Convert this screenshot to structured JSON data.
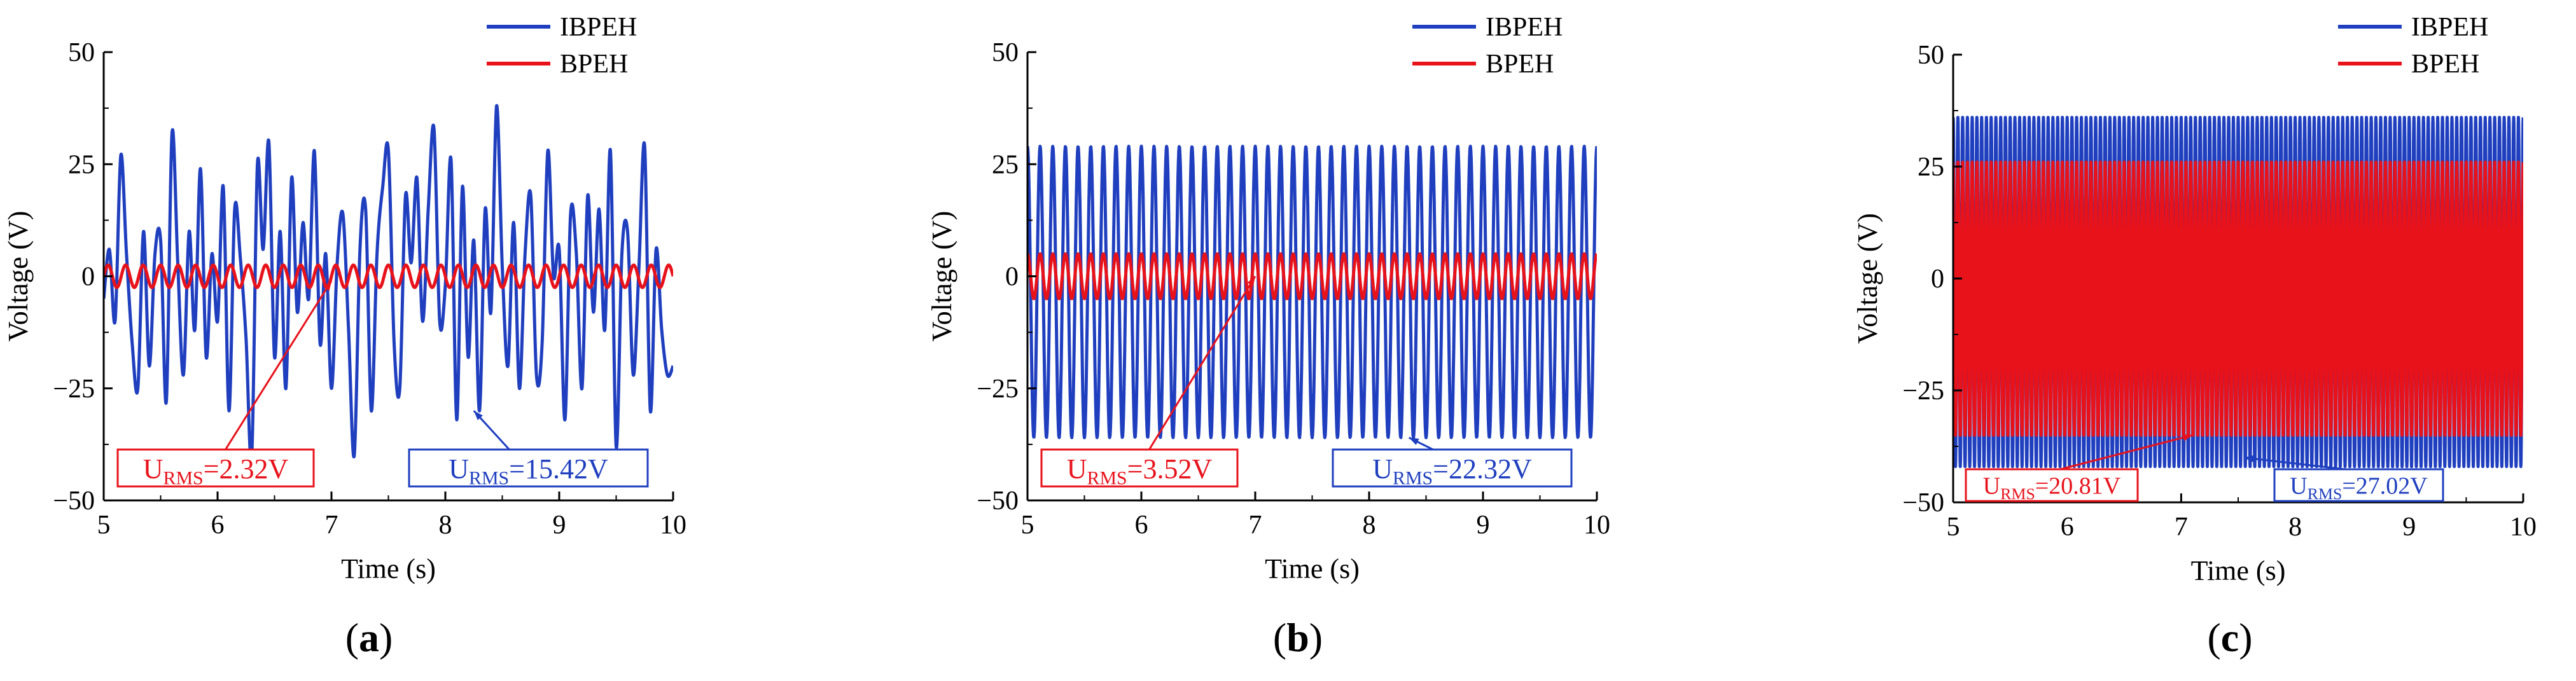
{
  "colors": {
    "ibpeh": "#1f3fbf",
    "bpeh": "#e8121b",
    "axis": "#000000"
  },
  "chart_data": [
    {
      "panel": "(a)",
      "panel_letter": "a",
      "type": "line",
      "title": "",
      "xlabel": "Time (s)",
      "ylabel": "Voltage (V)",
      "xlim": [
        5,
        10
      ],
      "ylim": [
        -50,
        50
      ],
      "xticks": [
        5,
        6,
        7,
        8,
        9,
        10
      ],
      "yticks": [
        50,
        25,
        0,
        -25,
        -50
      ],
      "ytick_labels": [
        "50",
        "25",
        "0",
        "−25",
        "−50"
      ],
      "legend": [
        "IBPEH",
        "BPEH"
      ],
      "series": [
        {
          "name": "IBPEH",
          "color": "#1f3fbf",
          "x": [
            5.0,
            5.05,
            5.1,
            5.15,
            5.2,
            5.25,
            5.3,
            5.35,
            5.4,
            5.45,
            5.5,
            5.55,
            5.6,
            5.65,
            5.7,
            5.75,
            5.8,
            5.85,
            5.9,
            5.95,
            6.0,
            6.05,
            6.1,
            6.15,
            6.2,
            6.25,
            6.3,
            6.35,
            6.4,
            6.45,
            6.5,
            6.55,
            6.6,
            6.65,
            6.7,
            6.75,
            6.8,
            6.85,
            6.9,
            6.95,
            7.0,
            7.05,
            7.1,
            7.15,
            7.2,
            7.25,
            7.3,
            7.35,
            7.4,
            7.45,
            7.5,
            7.55,
            7.6,
            7.65,
            7.7,
            7.75,
            7.8,
            7.85,
            7.9,
            7.95,
            8.0,
            8.05,
            8.1,
            8.15,
            8.2,
            8.25,
            8.3,
            8.35,
            8.4,
            8.45,
            8.5,
            8.55,
            8.6,
            8.65,
            8.7,
            8.75,
            8.8,
            8.85,
            8.9,
            8.95,
            9.0,
            9.05,
            9.1,
            9.15,
            9.2,
            9.25,
            9.3,
            9.35,
            9.4,
            9.45,
            9.5,
            9.55,
            9.6,
            9.65,
            9.7,
            9.75,
            9.8,
            9.85,
            9.9,
            9.95,
            10.0
          ],
          "values": [
            -5,
            6,
            -10,
            27,
            5,
            -15,
            -25,
            10,
            -20,
            5,
            8,
            -28,
            32,
            3,
            -22,
            10,
            -12,
            24,
            -18,
            5,
            -10,
            20,
            -30,
            15,
            4,
            -14,
            -40,
            25,
            6,
            30,
            -18,
            10,
            -25,
            22,
            -8,
            12,
            -5,
            28,
            -15,
            5,
            -25,
            3,
            14,
            -12,
            -40,
            6,
            15,
            -30,
            5,
            20,
            28,
            -15,
            -25,
            18,
            3,
            22,
            -10,
            15,
            33,
            -10,
            -2,
            26,
            -32,
            20,
            -18,
            8,
            -30,
            15,
            -8,
            38,
            2,
            -20,
            12,
            -25,
            5,
            18,
            -22,
            -15,
            28,
            0,
            6,
            -32,
            14,
            5,
            -25,
            18,
            -8,
            15,
            -12,
            28,
            -38,
            5,
            10,
            -22,
            2,
            29,
            -30,
            6,
            -12,
            -22,
            -20
          ]
        },
        {
          "name": "BPEH",
          "color": "#e8121b",
          "amplitude": 2.5,
          "offset": 0,
          "frequency_hz": 6.5
        }
      ],
      "annotations": [
        {
          "label": "U",
          "subscript": "RMS",
          "value": "=2.32V",
          "color": "#e8121b",
          "points_to": [
            7.0,
            -1
          ]
        },
        {
          "label": "U",
          "subscript": "RMS",
          "value": "=15.42V",
          "color": "#1f3fbf",
          "points_to": [
            8.25,
            -30
          ]
        }
      ]
    },
    {
      "panel": "(b)",
      "panel_letter": "b",
      "type": "line",
      "title": "",
      "xlabel": "Time (s)",
      "ylabel": "Voltage (V)",
      "xlim": [
        5,
        10
      ],
      "ylim": [
        -50,
        50
      ],
      "xticks": [
        5,
        6,
        7,
        8,
        9,
        10
      ],
      "yticks": [
        50,
        25,
        0,
        -25,
        -50
      ],
      "ytick_labels": [
        "50",
        "25",
        "0",
        "−25",
        "−50"
      ],
      "legend": [
        "IBPEH",
        "BPEH"
      ],
      "series": [
        {
          "name": "IBPEH",
          "color": "#1f3fbf",
          "max": 29,
          "min": -36,
          "frequency_hz": 9
        },
        {
          "name": "BPEH",
          "color": "#e8121b",
          "max": 5,
          "min": -5,
          "frequency_hz": 9
        }
      ],
      "annotations": [
        {
          "label": "U",
          "subscript": "RMS",
          "value": "=3.52V",
          "color": "#e8121b",
          "points_to": [
            7.0,
            0
          ]
        },
        {
          "label": "U",
          "subscript": "RMS",
          "value": "=22.32V",
          "color": "#1f3fbf",
          "points_to": [
            8.35,
            -36
          ]
        }
      ]
    },
    {
      "panel": "(c)",
      "panel_letter": "c",
      "type": "line",
      "title": "",
      "xlabel": "Time (s)",
      "ylabel": "Voltage (V)",
      "xlim": [
        5,
        10
      ],
      "ylim": [
        -50,
        50
      ],
      "xticks": [
        5,
        6,
        7,
        8,
        9,
        10
      ],
      "yticks": [
        50,
        25,
        0,
        -25,
        -50
      ],
      "ytick_labels": [
        "50",
        "25",
        "0",
        "−25",
        "−50"
      ],
      "legend": [
        "IBPEH",
        "BPEH"
      ],
      "series": [
        {
          "name": "IBPEH",
          "color": "#1f3fbf",
          "max": 36,
          "min": -42,
          "frequency_hz": 24
        },
        {
          "name": "BPEH",
          "color": "#e8121b",
          "max": 26,
          "min": -35,
          "frequency_hz": 24
        }
      ],
      "annotations": [
        {
          "label": "U",
          "subscript": "RMS",
          "value": "=20.81V",
          "color": "#e8121b",
          "points_to": [
            7.1,
            -35
          ]
        },
        {
          "label": "U",
          "subscript": "RMS",
          "value": "=27.02V",
          "color": "#1f3fbf",
          "points_to": [
            7.55,
            -40
          ]
        }
      ]
    }
  ]
}
